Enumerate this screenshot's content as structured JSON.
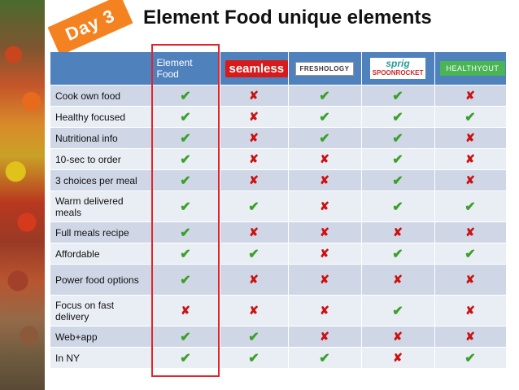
{
  "day_badge": "Day 3",
  "title": "Element Food unique elements",
  "header": {
    "first_col": "Element Food",
    "logos": [
      "seamless",
      "FRESHOLOGY",
      "sprig",
      "SPOONROCKET",
      "HEALTHYOUT"
    ]
  },
  "colors": {
    "header": "#4f81bd",
    "row_odd": "#cfd7e6",
    "row_even": "#e9edf4",
    "check": "#3aa028",
    "cross": "#cc1111",
    "highlight": "#e0242a",
    "badge": "#f58220"
  },
  "rows": [
    {
      "label": "Cook own food",
      "marks": [
        1,
        0,
        1,
        1,
        0
      ]
    },
    {
      "label": "Healthy focused",
      "marks": [
        1,
        0,
        1,
        1,
        1
      ]
    },
    {
      "label": "Nutritional info",
      "marks": [
        1,
        0,
        1,
        1,
        0
      ]
    },
    {
      "label": "10-sec to order",
      "marks": [
        1,
        0,
        0,
        1,
        0
      ]
    },
    {
      "label": "3 choices per meal",
      "marks": [
        1,
        0,
        0,
        1,
        0
      ]
    },
    {
      "label": "Warm delivered meals",
      "marks": [
        1,
        1,
        0,
        1,
        1
      ]
    },
    {
      "label": "Full meals recipe",
      "marks": [
        1,
        0,
        0,
        0,
        0
      ]
    },
    {
      "label": "Affordable",
      "marks": [
        1,
        1,
        0,
        1,
        1
      ]
    },
    {
      "label": "Power food options",
      "marks": [
        1,
        0,
        0,
        0,
        0
      ]
    },
    {
      "label": "Focus on fast delivery",
      "marks": [
        0,
        0,
        0,
        1,
        0
      ]
    },
    {
      "label": "Web+app",
      "marks": [
        1,
        1,
        0,
        0,
        0
      ]
    },
    {
      "label": "In NY",
      "marks": [
        1,
        1,
        1,
        0,
        1
      ]
    }
  ]
}
